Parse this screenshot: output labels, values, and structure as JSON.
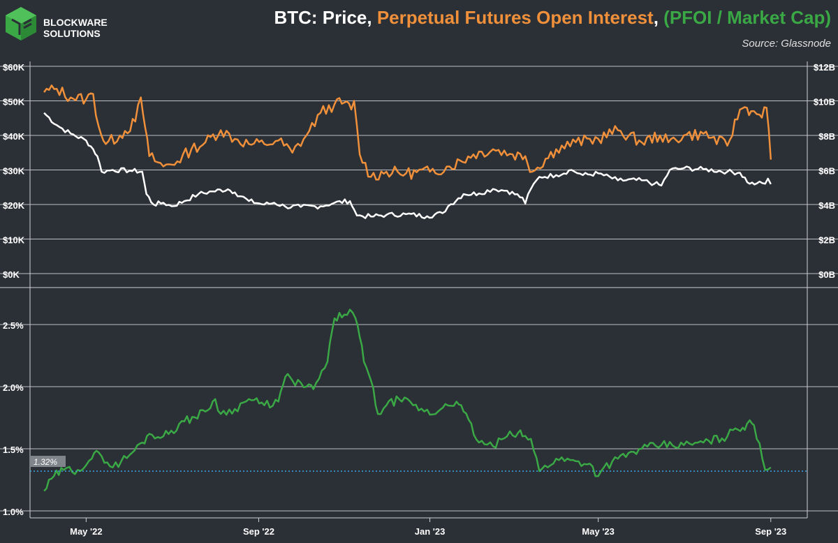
{
  "header": {
    "logo_line1": "BLOCKWARE",
    "logo_line2": "SOLUTIONS",
    "title_part1": "BTC: Price, ",
    "title_part2": "Perpetual Futures Open Interest",
    "title_part3": ", ",
    "title_part4": "(PFOI / Market Cap)",
    "source": "Source: Glassnode"
  },
  "colors": {
    "background": "#2b2f36",
    "price": "#ffffff",
    "pfoi": "#f0903a",
    "ratio": "#3aa845",
    "reference": "#3a9fd8",
    "grid": "#d8dadc"
  },
  "chart_data": [
    {
      "type": "line",
      "panel": "top",
      "yleft_ticks": [
        "$60K",
        "$50K",
        "$40K",
        "$30K",
        "$20K",
        "$10K",
        "$0K"
      ],
      "yright_ticks": [
        "$12B",
        "$10B",
        "$8B",
        "$6B",
        "$4B",
        "$2B",
        "$0B"
      ],
      "ylim_left": [
        0,
        60000
      ],
      "ylim_right": [
        0,
        12
      ],
      "series": [
        {
          "axis": "left",
          "x": [
            "2022-04-01",
            "2022-04-10",
            "2022-04-20",
            "2022-05-01",
            "2022-05-06",
            "2022-05-09",
            "2022-05-12",
            "2022-05-20",
            "2022-06-01",
            "2022-06-10",
            "2022-06-13",
            "2022-06-18",
            "2022-06-25",
            "2022-07-01",
            "2022-07-10",
            "2022-07-20",
            "2022-07-30",
            "2022-08-10",
            "2022-08-15",
            "2022-08-25",
            "2022-09-05",
            "2022-09-12",
            "2022-09-20",
            "2022-10-01",
            "2022-10-15",
            "2022-10-25",
            "2022-11-05",
            "2022-11-08",
            "2022-11-10",
            "2022-11-20",
            "2022-12-01",
            "2022-12-15",
            "2022-12-30",
            "2023-01-10",
            "2023-01-14",
            "2023-01-25",
            "2023-02-05",
            "2023-02-15",
            "2023-02-25",
            "2023-03-08",
            "2023-03-10",
            "2023-03-14",
            "2023-03-20",
            "2023-04-01",
            "2023-04-12",
            "2023-04-20",
            "2023-05-01",
            "2023-05-15",
            "2023-06-01",
            "2023-06-10",
            "2023-06-15",
            "2023-06-21",
            "2023-07-01",
            "2023-07-15",
            "2023-08-01",
            "2023-08-10",
            "2023-08-17",
            "2023-08-22",
            "2023-08-28",
            "2023-08-30",
            "2023-09-01"
          ],
          "y": [
            46500,
            43000,
            40500,
            38500,
            36000,
            34000,
            29500,
            30000,
            29800,
            29500,
            23000,
            20000,
            20500,
            19500,
            21000,
            23000,
            23800,
            24400,
            23500,
            21000,
            20000,
            20500,
            19400,
            19300,
            19500,
            20500,
            21000,
            18500,
            16800,
            16500,
            17000,
            17200,
            16600,
            17500,
            19500,
            23000,
            23200,
            24500,
            24000,
            22000,
            20300,
            24500,
            28000,
            28500,
            30000,
            28500,
            29000,
            27000,
            27000,
            26000,
            25500,
            30000,
            30500,
            30200,
            29500,
            29200,
            26000,
            26100,
            26000,
            27500,
            25900
          ]
        },
        {
          "axis": "right",
          "x": [
            "2022-04-01",
            "2022-04-10",
            "2022-04-20",
            "2022-05-01",
            "2022-05-06",
            "2022-05-10",
            "2022-05-15",
            "2022-05-25",
            "2022-06-05",
            "2022-06-09",
            "2022-06-12",
            "2022-06-15",
            "2022-06-25",
            "2022-07-05",
            "2022-07-15",
            "2022-07-25",
            "2022-08-05",
            "2022-08-15",
            "2022-08-25",
            "2022-09-05",
            "2022-09-15",
            "2022-09-25",
            "2022-10-05",
            "2022-10-15",
            "2022-10-25",
            "2022-11-01",
            "2022-11-06",
            "2022-11-08",
            "2022-11-12",
            "2022-11-20",
            "2022-12-01",
            "2022-12-15",
            "2023-01-01",
            "2023-01-15",
            "2023-02-01",
            "2023-02-15",
            "2023-03-01",
            "2023-03-10",
            "2023-03-15",
            "2023-04-01",
            "2023-04-15",
            "2023-05-01",
            "2023-05-15",
            "2023-06-01",
            "2023-06-14",
            "2023-06-20",
            "2023-07-01",
            "2023-07-15",
            "2023-08-01",
            "2023-08-10",
            "2023-08-15",
            "2023-08-18",
            "2023-08-24",
            "2023-08-29",
            "2023-09-01"
          ],
          "y": [
            10.5,
            10.7,
            10.2,
            10.1,
            10.4,
            8.5,
            7.5,
            8.0,
            8.8,
            10.2,
            8.5,
            6.8,
            6.2,
            6.5,
            7.2,
            7.6,
            8.3,
            7.8,
            7.5,
            7.5,
            7.7,
            7.0,
            8.0,
            9.3,
            9.8,
            9.9,
            9.5,
            10.0,
            6.9,
            5.6,
            5.9,
            5.8,
            5.9,
            6.2,
            6.9,
            7.2,
            6.9,
            6.8,
            5.9,
            7.2,
            7.6,
            7.8,
            8.3,
            7.6,
            8.0,
            7.6,
            8.0,
            8.1,
            7.4,
            9.5,
            9.6,
            9.4,
            9.2,
            9.6,
            6.6
          ]
        }
      ]
    },
    {
      "type": "line",
      "panel": "bottom",
      "y_ticks": [
        "2.5%",
        "2.0%",
        "1.5%",
        "1.0%"
      ],
      "ylim": [
        1.0,
        2.75
      ],
      "x_ticks": [
        "May '22",
        "Sep '22",
        "Jan '23",
        "May '23",
        "Sep '23"
      ],
      "reference_label": "1.32%",
      "reference_value": 1.32,
      "series": [
        {
          "x": [
            "2022-04-01",
            "2022-04-08",
            "2022-04-15",
            "2022-04-25",
            "2022-05-05",
            "2022-05-10",
            "2022-05-20",
            "2022-06-01",
            "2022-06-10",
            "2022-06-15",
            "2022-06-25",
            "2022-07-10",
            "2022-07-25",
            "2022-08-01",
            "2022-08-05",
            "2022-08-15",
            "2022-08-25",
            "2022-09-05",
            "2022-09-15",
            "2022-09-20",
            "2022-09-25",
            "2022-10-05",
            "2022-10-10",
            "2022-10-20",
            "2022-10-25",
            "2022-11-01",
            "2022-11-05",
            "2022-11-09",
            "2022-11-12",
            "2022-11-15",
            "2022-11-20",
            "2022-11-25",
            "2022-12-01",
            "2022-12-10",
            "2022-12-20",
            "2022-12-28",
            "2023-01-05",
            "2023-01-12",
            "2023-01-20",
            "2023-01-25",
            "2023-02-05",
            "2023-02-15",
            "2023-02-25",
            "2023-03-05",
            "2023-03-08",
            "2023-03-14",
            "2023-03-20",
            "2023-04-01",
            "2023-04-15",
            "2023-04-25",
            "2023-05-01",
            "2023-05-05",
            "2023-05-15",
            "2023-06-01",
            "2023-06-15",
            "2023-07-01",
            "2023-07-15",
            "2023-08-01",
            "2023-08-05",
            "2023-08-12",
            "2023-08-15",
            "2023-08-17",
            "2023-08-20",
            "2023-08-28",
            "2023-09-01"
          ],
          "y": [
            1.16,
            1.28,
            1.33,
            1.33,
            1.42,
            1.47,
            1.35,
            1.45,
            1.55,
            1.62,
            1.6,
            1.72,
            1.8,
            1.9,
            1.78,
            1.82,
            1.9,
            1.85,
            1.88,
            2.08,
            2.05,
            2.0,
            1.98,
            2.2,
            2.55,
            2.58,
            2.62,
            2.55,
            2.4,
            2.2,
            2.05,
            1.78,
            1.85,
            1.9,
            1.85,
            1.8,
            1.78,
            1.86,
            1.88,
            1.8,
            1.55,
            1.52,
            1.6,
            1.63,
            1.6,
            1.58,
            1.32,
            1.42,
            1.4,
            1.38,
            1.28,
            1.35,
            1.42,
            1.5,
            1.53,
            1.53,
            1.55,
            1.6,
            1.65,
            1.67,
            1.7,
            1.73,
            1.69,
            1.33,
            1.35
          ]
        }
      ]
    }
  ]
}
